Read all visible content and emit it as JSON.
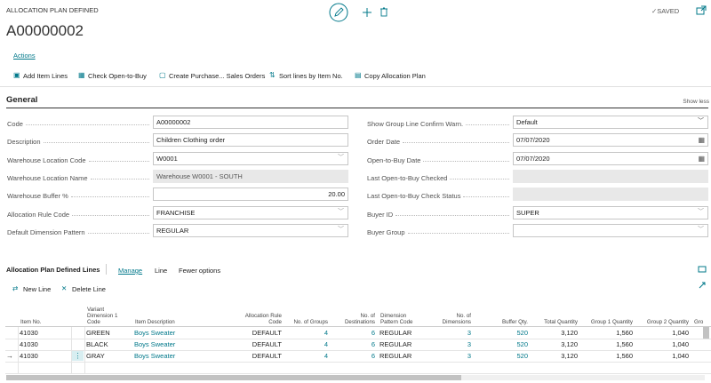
{
  "header": {
    "caption": "ALLOCATION PLAN DEFINED",
    "title": "A00000002",
    "status": "SAVED"
  },
  "actions": {
    "label": "Actions",
    "items": [
      "Add Item Lines",
      "Check Open-to-Buy",
      "Create Purchase... Sales Orders",
      "Sort lines by Item No.",
      "Copy Allocation Plan"
    ]
  },
  "general": {
    "title": "General",
    "toggle": "Show less",
    "left": [
      {
        "label": "Code",
        "value": "A00000002"
      },
      {
        "label": "Description",
        "value": "Children Clothing order"
      },
      {
        "label": "Warehouse Location Code",
        "value": "W0001"
      },
      {
        "label": "Warehouse Location Name",
        "value": "Warehouse W0001 - SOUTH"
      },
      {
        "label": "Warehouse Buffer %",
        "value": "20.00"
      },
      {
        "label": "Allocation Rule Code",
        "value": "FRANCHISE"
      },
      {
        "label": "Default Dimension Pattern",
        "value": "REGULAR"
      }
    ],
    "right": [
      {
        "label": "Show Group Line Confirm Warn.",
        "value": "Default"
      },
      {
        "label": "Order Date",
        "value": "07/07/2020"
      },
      {
        "label": "Open-to-Buy Date",
        "value": "07/07/2020"
      },
      {
        "label": "Last Open-to-Buy Checked"
      },
      {
        "label": "Last Open-to-Buy Check Status"
      },
      {
        "label": "Buyer ID",
        "value": "SUPER"
      },
      {
        "label": "Buyer Group"
      }
    ]
  },
  "lines": {
    "title": "Allocation Plan Defined Lines",
    "tabs": [
      "Manage",
      "Line",
      "Fewer options"
    ],
    "actions": [
      "New Line",
      "Delete Line"
    ],
    "columns": [
      "Item No.",
      "Variant Dimension 1 Code",
      "Item Description",
      "Allocation Rule Code",
      "No. of Groups",
      "No. of Destinations",
      "Dimension Pattern Code",
      "No. of Dimensions",
      "Buffer Qty.",
      "Total Quantity",
      "Group 1 Quantity",
      "Group 2 Quantity",
      "Gro"
    ],
    "rows": [
      [
        "41030",
        "GREEN",
        "Boys Sweater",
        "DEFAULT",
        "4",
        "6",
        "REGULAR",
        "3",
        "520",
        "3,120",
        "1,560",
        "1,040"
      ],
      [
        "41030",
        "BLACK",
        "Boys Sweater",
        "DEFAULT",
        "4",
        "6",
        "REGULAR",
        "3",
        "520",
        "3,120",
        "1,560",
        "1,040"
      ],
      [
        "41030",
        "GRAY",
        "Boys Sweater",
        "DEFAULT",
        "4",
        "6",
        "REGULAR",
        "3",
        "520",
        "3,120",
        "1,560",
        "1,040"
      ]
    ]
  }
}
